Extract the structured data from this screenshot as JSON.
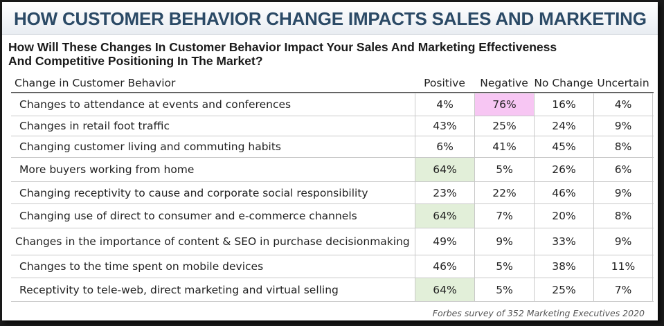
{
  "banner": {
    "title": "HOW CUSTOMER BEHAVIOR CHANGE IMPACTS SALES AND MARKETING"
  },
  "subtitle": {
    "line1": "How Will These Changes In Customer Behavior Impact Your Sales And Marketing Effectiveness",
    "line2": "And Competitive Positioning In The Market?"
  },
  "table": {
    "headers": [
      "Change in Customer Behavior",
      "Positive",
      "Negative",
      "No Change",
      "Uncertain"
    ],
    "rows": [
      {
        "label": "Changes to attendance at events and conferences",
        "values": [
          "4%",
          "76%",
          "16%",
          "4%"
        ]
      },
      {
        "label": "Changes in retail foot traffic",
        "values": [
          "43%",
          "25%",
          "24%",
          "9%"
        ]
      },
      {
        "label": "Changing customer living and commuting habits",
        "values": [
          "6%",
          "41%",
          "45%",
          "8%"
        ]
      },
      {
        "label": "More buyers working from home",
        "values": [
          "64%",
          "5%",
          "26%",
          "6%"
        ]
      },
      {
        "label": "Changing receptivity to cause and corporate social responsibility",
        "values": [
          "23%",
          "22%",
          "46%",
          "9%"
        ]
      },
      {
        "label": "Changing use of direct to consumer and e-commerce channels",
        "values": [
          "64%",
          "7%",
          "20%",
          "8%"
        ]
      },
      {
        "label": "Changes in the importance of content & SEO in purchase decisionmaking",
        "values": [
          "49%",
          "9%",
          "33%",
          "9%"
        ]
      },
      {
        "label": "Changes to the time spent on mobile devices",
        "values": [
          "46%",
          "5%",
          "38%",
          "11%"
        ]
      },
      {
        "label": "Receptivity to tele-web, direct marketing and virtual selling",
        "values": [
          "64%",
          "5%",
          "25%",
          "7%"
        ]
      }
    ]
  },
  "highlight_colors": {
    "positive_highlight": "#e2efd9",
    "negative_highlight": "#f7c6f3"
  },
  "footnote": "Forbes survey of 352 Marketing Executives 2020"
}
